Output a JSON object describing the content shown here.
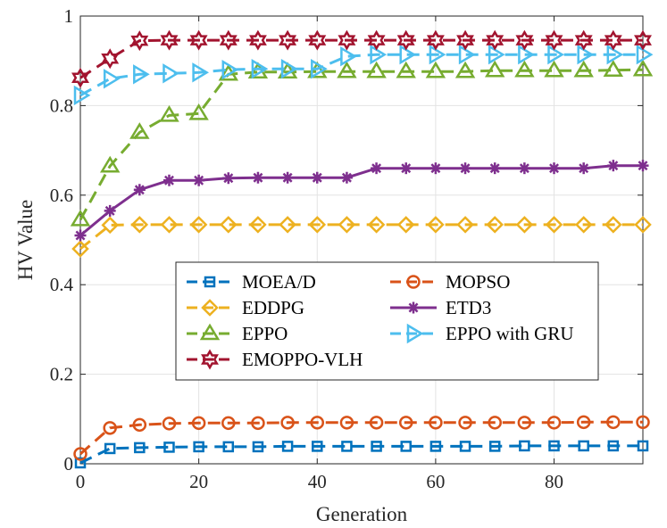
{
  "chart_data": {
    "type": "line",
    "title": "",
    "xlabel": "Generation",
    "ylabel": "HV Value",
    "xlim": [
      0,
      95
    ],
    "ylim": [
      0,
      1
    ],
    "xticks": [
      0,
      20,
      40,
      60,
      80
    ],
    "xtick_labels": [
      "0",
      "20",
      "40",
      "60",
      "80"
    ],
    "yticks": [
      0,
      0.2,
      0.4,
      0.6,
      0.8,
      1
    ],
    "ytick_labels": [
      "0",
      "0.2",
      "0.4",
      "0.6",
      "0.8",
      "1"
    ],
    "grid": true,
    "legend_position": "center-right",
    "x": [
      0,
      5,
      10,
      15,
      20,
      25,
      30,
      35,
      40,
      45,
      50,
      55,
      60,
      65,
      70,
      75,
      80,
      85,
      90,
      95
    ],
    "series": [
      {
        "name": "MOEA/D",
        "color": "#0072BD",
        "marker": "square",
        "dash": "dashed",
        "values": [
          0.002,
          0.034,
          0.036,
          0.037,
          0.038,
          0.038,
          0.038,
          0.039,
          0.039,
          0.039,
          0.039,
          0.039,
          0.039,
          0.039,
          0.039,
          0.04,
          0.04,
          0.04,
          0.04,
          0.04
        ]
      },
      {
        "name": "MOPSO",
        "color": "#D95319",
        "marker": "circle",
        "dash": "dashed",
        "values": [
          0.022,
          0.08,
          0.087,
          0.09,
          0.091,
          0.091,
          0.091,
          0.092,
          0.092,
          0.092,
          0.092,
          0.092,
          0.092,
          0.092,
          0.092,
          0.092,
          0.092,
          0.093,
          0.093,
          0.093
        ]
      },
      {
        "name": "EDDPG",
        "color": "#EDB120",
        "marker": "diamond",
        "dash": "dashed",
        "values": [
          0.48,
          0.533,
          0.534,
          0.534,
          0.534,
          0.534,
          0.534,
          0.534,
          0.534,
          0.534,
          0.534,
          0.534,
          0.534,
          0.534,
          0.534,
          0.534,
          0.534,
          0.534,
          0.534,
          0.534
        ]
      },
      {
        "name": "ETD3",
        "color": "#7E2F8E",
        "marker": "asterisk",
        "dash": "solid",
        "values": [
          0.51,
          0.565,
          0.612,
          0.633,
          0.633,
          0.638,
          0.639,
          0.639,
          0.639,
          0.639,
          0.66,
          0.66,
          0.66,
          0.66,
          0.66,
          0.66,
          0.66,
          0.66,
          0.666,
          0.666
        ]
      },
      {
        "name": "EPPO",
        "color": "#77AC30",
        "marker": "triangle-up",
        "dash": "dashed",
        "values": [
          0.545,
          0.665,
          0.74,
          0.778,
          0.782,
          0.87,
          0.875,
          0.875,
          0.876,
          0.876,
          0.876,
          0.876,
          0.876,
          0.876,
          0.878,
          0.878,
          0.878,
          0.878,
          0.879,
          0.88
        ]
      },
      {
        "name": "EPPO with GRU",
        "color": "#4DBEEE",
        "marker": "triangle-right",
        "dash": "dashed",
        "values": [
          0.823,
          0.86,
          0.87,
          0.872,
          0.874,
          0.88,
          0.882,
          0.882,
          0.882,
          0.91,
          0.914,
          0.914,
          0.914,
          0.914,
          0.914,
          0.914,
          0.914,
          0.914,
          0.914,
          0.914
        ]
      },
      {
        "name": "EMOPPO-VLH",
        "color": "#A2142F",
        "marker": "hexagram",
        "dash": "dashed",
        "values": [
          0.862,
          0.905,
          0.945,
          0.946,
          0.946,
          0.946,
          0.946,
          0.946,
          0.946,
          0.946,
          0.946,
          0.946,
          0.946,
          0.946,
          0.946,
          0.946,
          0.946,
          0.946,
          0.946,
          0.946
        ]
      }
    ]
  }
}
